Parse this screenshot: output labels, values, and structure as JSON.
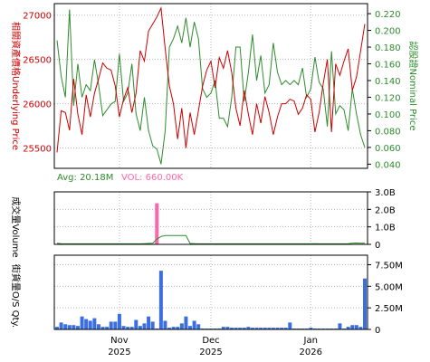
{
  "colors": {
    "underlying": "#cc0000",
    "warrant": "#2e8b2e",
    "volume_bar": "#ff66aa",
    "volume_avg": "#2e8b2e",
    "os_bar": "#3b6fe0",
    "grid": "#b8b8b8",
    "frame": "#000000"
  },
  "labels": {
    "left_axis": "相關資產價格Underlying Price",
    "right_axis": "認股證Nominal Price",
    "volume_axis": "成交量Volume",
    "os_axis": "街貨量O/S Qty.",
    "avg_text": "Avg: 20.18M",
    "vol_text": "VOL: 660.00K"
  },
  "x_labels": [
    {
      "month": "Nov",
      "year": "2025",
      "index": 15
    },
    {
      "month": "Dec",
      "year": "2025",
      "index": 37
    },
    {
      "month": "Jan",
      "year": "2026",
      "index": 61
    }
  ],
  "chart_data": [
    {
      "type": "line",
      "title": "",
      "ylabel": "Underlying Price",
      "y2label": "Nominal Price",
      "y_ticks": [
        "25500",
        "26000",
        "26500",
        "27000"
      ],
      "y2_ticks": [
        "0.040",
        "0.060",
        "0.080",
        "0.100",
        "0.120",
        "0.140",
        "0.160",
        "0.180",
        "0.200",
        "0.220"
      ],
      "ylim": [
        25270,
        27130
      ],
      "y2lim": [
        0.035,
        0.232
      ],
      "series": [
        {
          "axis": "left",
          "values": [
            25450,
            25920,
            25900,
            25700,
            26280,
            25880,
            25650,
            26100,
            25850,
            26120,
            26280,
            26460,
            26400,
            26380,
            26200,
            25850,
            26050,
            26180,
            25900,
            26120,
            26600,
            26480,
            26820,
            26900,
            26980,
            27080,
            26620,
            26200,
            26000,
            25600,
            25950,
            25500,
            25900,
            25650,
            25920,
            26200,
            26380,
            26480,
            26180,
            26520,
            26400,
            26600,
            26350,
            25950,
            25750,
            26150,
            25880,
            25650,
            26000,
            25780,
            26080,
            25900,
            25650,
            25850,
            26000,
            26000,
            26050,
            26030,
            25880,
            25950,
            26100,
            26050,
            25680,
            25900,
            26230,
            26500,
            25680,
            26450,
            26320,
            26480,
            26620,
            26150,
            26300,
            26600,
            26900
          ]
        },
        {
          "axis": "right",
          "values": [
            0.188,
            0.145,
            0.12,
            0.225,
            0.11,
            0.16,
            0.12,
            0.135,
            0.128,
            0.165,
            0.135,
            0.098,
            0.105,
            0.112,
            0.115,
            0.172,
            0.115,
            0.125,
            0.16,
            0.1,
            0.08,
            0.12,
            0.08,
            0.062,
            0.058,
            0.04,
            0.08,
            0.18,
            0.19,
            0.205,
            0.185,
            0.215,
            0.18,
            0.21,
            0.19,
            0.13,
            0.12,
            0.125,
            0.14,
            0.095,
            0.095,
            0.085,
            0.12,
            0.18,
            0.18,
            0.115,
            0.15,
            0.195,
            0.14,
            0.17,
            0.125,
            0.135,
            0.185,
            0.15,
            0.135,
            0.14,
            0.135,
            0.14,
            0.135,
            0.155,
            0.12,
            0.13,
            0.168,
            0.138,
            0.13,
            0.085,
            0.175,
            0.1,
            0.11,
            0.105,
            0.08,
            0.13,
            0.1,
            0.075,
            0.06
          ]
        }
      ]
    },
    {
      "type": "bar",
      "title": "",
      "ylabel": "Volume",
      "y_ticks": [
        "0",
        "1.0B",
        "2.0B",
        "3.0B"
      ],
      "ylim": [
        0,
        3.0
      ],
      "unit": "B",
      "avg": 0.02018,
      "highlight_index": 24,
      "highlight_value": 2.35,
      "avg_series": [
        0.06,
        0.04,
        0.03,
        0.03,
        0.03,
        0.03,
        0.03,
        0.03,
        0.03,
        0.03,
        0.03,
        0.03,
        0.03,
        0.03,
        0.03,
        0.03,
        0.03,
        0.03,
        0.03,
        0.03,
        0.03,
        0.04,
        0.05,
        0.06,
        0.3,
        0.45,
        0.5,
        0.5,
        0.5,
        0.5,
        0.5,
        0.5,
        0.05,
        0.04,
        0.03,
        0.03,
        0.03,
        0.03,
        0.03,
        0.03,
        0.03,
        0.03,
        0.03,
        0.03,
        0.03,
        0.03,
        0.03,
        0.03,
        0.03,
        0.03,
        0.03,
        0.03,
        0.03,
        0.03,
        0.03,
        0.03,
        0.03,
        0.03,
        0.03,
        0.03,
        0.03,
        0.03,
        0.04,
        0.03,
        0.03,
        0.03,
        0.03,
        0.03,
        0.03,
        0.03,
        0.04,
        0.06,
        0.08,
        0.06,
        0.06
      ]
    },
    {
      "type": "bar",
      "title": "",
      "ylabel": "O/S Qty.",
      "y_ticks": [
        "0",
        "2.50M",
        "5.00M",
        "7.50M"
      ],
      "ylim": [
        0,
        8.6
      ],
      "unit": "M",
      "values": [
        0.3,
        0.8,
        0.6,
        0.5,
        0.5,
        0.4,
        1.5,
        1.2,
        1.0,
        1.3,
        0.6,
        0.3,
        0.3,
        0.9,
        0.9,
        1.8,
        0.4,
        0.3,
        0.3,
        1.1,
        0.4,
        0.7,
        1.5,
        0.9,
        0.1,
        6.8,
        1.0,
        0.2,
        0.3,
        0.3,
        0.7,
        1.5,
        0.4,
        1.0,
        0.6,
        0.1,
        0.1,
        0.1,
        0.1,
        0.1,
        0.3,
        0.3,
        0.2,
        0.2,
        0.2,
        0.2,
        0.3,
        0.2,
        0.2,
        0.2,
        0.2,
        0.2,
        0.2,
        0.2,
        0.2,
        0.2,
        0.8,
        0.1,
        0.1,
        0.1,
        0.1,
        0.2,
        0.1,
        0.1,
        0.1,
        0.1,
        0.1,
        0.1,
        0.7,
        0.1,
        0.3,
        0.5,
        0.5,
        0.3,
        5.9
      ]
    }
  ]
}
